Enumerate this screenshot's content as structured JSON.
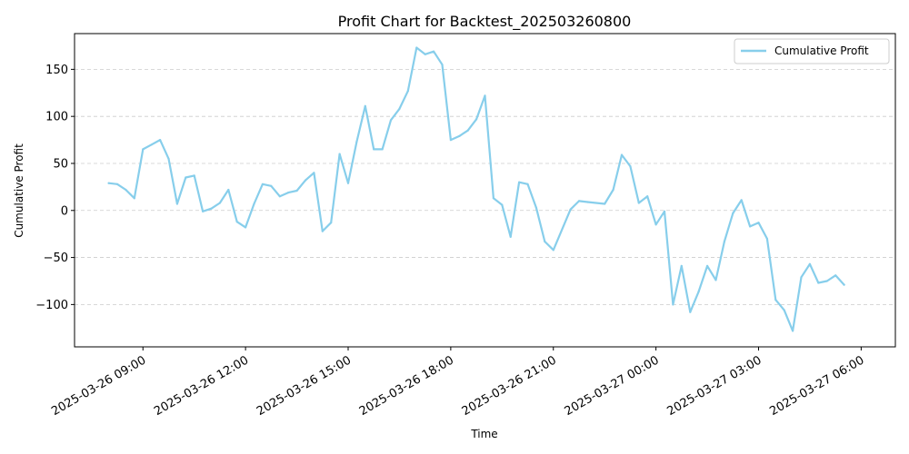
{
  "chart_data": {
    "type": "line",
    "title": "Profit Chart for Backtest_202503260800",
    "xlabel": "Time",
    "ylabel": "Cumulative Profit",
    "xlim": [
      "2025-03-26 07:00",
      "2025-03-27 07:00"
    ],
    "ylim": [
      -145,
      188
    ],
    "grid": {
      "x": false,
      "y": true,
      "style": "dashed"
    },
    "legend": {
      "position": "top-right",
      "entries": [
        "Cumulative Profit"
      ]
    },
    "series_color": "#87ceeb",
    "xticks": [
      "2025-03-26 09:00",
      "2025-03-26 12:00",
      "2025-03-26 15:00",
      "2025-03-26 18:00",
      "2025-03-26 21:00",
      "2025-03-27 00:00",
      "2025-03-27 03:00",
      "2025-03-27 06:00"
    ],
    "yticks": [
      150,
      100,
      50,
      0,
      -50,
      -100
    ],
    "ytick_labels": [
      "150",
      "100",
      "50",
      "0",
      "−50",
      "−100"
    ],
    "series": [
      {
        "name": "Cumulative Profit",
        "x": [
          "2025-03-26 08:00",
          "2025-03-26 08:15",
          "2025-03-26 08:30",
          "2025-03-26 08:45",
          "2025-03-26 09:00",
          "2025-03-26 09:15",
          "2025-03-26 09:30",
          "2025-03-26 09:45",
          "2025-03-26 10:00",
          "2025-03-26 10:15",
          "2025-03-26 10:30",
          "2025-03-26 10:45",
          "2025-03-26 11:00",
          "2025-03-26 11:15",
          "2025-03-26 11:30",
          "2025-03-26 11:45",
          "2025-03-26 12:00",
          "2025-03-26 12:15",
          "2025-03-26 12:30",
          "2025-03-26 12:45",
          "2025-03-26 13:00",
          "2025-03-26 13:15",
          "2025-03-26 13:30",
          "2025-03-26 13:45",
          "2025-03-26 14:00",
          "2025-03-26 14:15",
          "2025-03-26 14:30",
          "2025-03-26 14:45",
          "2025-03-26 15:00",
          "2025-03-26 15:15",
          "2025-03-26 15:30",
          "2025-03-26 15:45",
          "2025-03-26 16:00",
          "2025-03-26 16:15",
          "2025-03-26 16:30",
          "2025-03-26 16:45",
          "2025-03-26 17:00",
          "2025-03-26 17:15",
          "2025-03-26 17:30",
          "2025-03-26 17:45",
          "2025-03-26 18:00",
          "2025-03-26 18:15",
          "2025-03-26 18:30",
          "2025-03-26 18:45",
          "2025-03-26 19:00",
          "2025-03-26 19:15",
          "2025-03-26 19:30",
          "2025-03-26 19:45",
          "2025-03-26 20:00",
          "2025-03-26 20:15",
          "2025-03-26 20:30",
          "2025-03-26 20:45",
          "2025-03-26 21:00",
          "2025-03-26 21:30",
          "2025-03-26 21:45",
          "2025-03-26 22:00",
          "2025-03-26 22:30",
          "2025-03-26 22:45",
          "2025-03-26 23:00",
          "2025-03-26 23:15",
          "2025-03-26 23:30",
          "2025-03-26 23:45",
          "2025-03-27 00:00",
          "2025-03-27 00:15",
          "2025-03-27 00:30",
          "2025-03-27 00:45",
          "2025-03-27 01:00",
          "2025-03-27 01:15",
          "2025-03-27 01:30",
          "2025-03-27 01:45",
          "2025-03-27 02:00",
          "2025-03-27 02:15",
          "2025-03-27 02:30",
          "2025-03-27 02:45",
          "2025-03-27 03:00",
          "2025-03-27 03:15",
          "2025-03-27 03:30",
          "2025-03-27 03:45",
          "2025-03-27 04:00",
          "2025-03-27 04:15",
          "2025-03-27 04:30",
          "2025-03-27 04:45",
          "2025-03-27 05:00",
          "2025-03-27 05:15",
          "2025-03-27 05:30"
        ],
        "values": [
          29,
          28,
          22,
          13,
          65,
          70,
          75,
          55,
          7,
          35,
          37,
          -1,
          2,
          8,
          22,
          -12,
          -18,
          7,
          28,
          26,
          15,
          19,
          21,
          32,
          40,
          -22,
          -13,
          60,
          29,
          73,
          111,
          65,
          65,
          96,
          108,
          127,
          173,
          166,
          169,
          155,
          75,
          79,
          85,
          97,
          122,
          13,
          6,
          -28,
          30,
          28,
          3,
          -33,
          -42,
          1,
          10,
          9,
          7,
          22,
          59,
          47,
          8,
          15,
          -15,
          -1,
          -100,
          -59,
          -108,
          -86,
          -59,
          -74,
          -33,
          -3,
          11,
          -17,
          -13,
          -30,
          -95,
          -106,
          -128,
          -71,
          -57,
          -77,
          -75,
          -69,
          -79
        ]
      }
    ]
  }
}
